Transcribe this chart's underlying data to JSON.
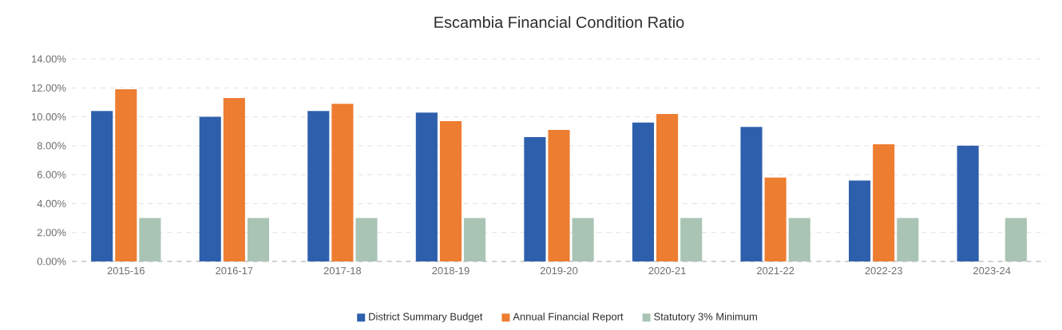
{
  "chart_data": {
    "type": "bar",
    "title": "Escambia Financial Condition Ratio",
    "categories": [
      "2015-16",
      "2016-17",
      "2017-18",
      "2018-19",
      "2019-20",
      "2020-21",
      "2021-22",
      "2022-23",
      "2023-24"
    ],
    "series": [
      {
        "name": "District Summary Budget",
        "color": "#2e5fad",
        "values": [
          10.4,
          10.0,
          10.4,
          10.3,
          8.6,
          9.6,
          9.3,
          5.6,
          8.0
        ]
      },
      {
        "name": "Annual Financial Report",
        "color": "#ed7d31",
        "values": [
          11.9,
          11.3,
          10.9,
          9.7,
          9.1,
          10.2,
          5.8,
          8.1,
          null
        ]
      },
      {
        "name": "Statutory 3% Minimum",
        "color": "#a9c4b4",
        "values": [
          3,
          3,
          3,
          3,
          3,
          3,
          3,
          3,
          3
        ]
      }
    ],
    "ylim": [
      0,
      14
    ],
    "yticks": [
      {
        "value": 0,
        "label": "0.00%"
      },
      {
        "value": 2,
        "label": "2.00%"
      },
      {
        "value": 4,
        "label": "4.00%"
      },
      {
        "value": 6,
        "label": "6.00%"
      },
      {
        "value": 8,
        "label": "8.00%"
      },
      {
        "value": 10,
        "label": "10.00%"
      },
      {
        "value": 12,
        "label": "12.00%"
      },
      {
        "value": 14,
        "label": "14.00%"
      }
    ],
    "grid": "y",
    "legend": "bottom"
  }
}
